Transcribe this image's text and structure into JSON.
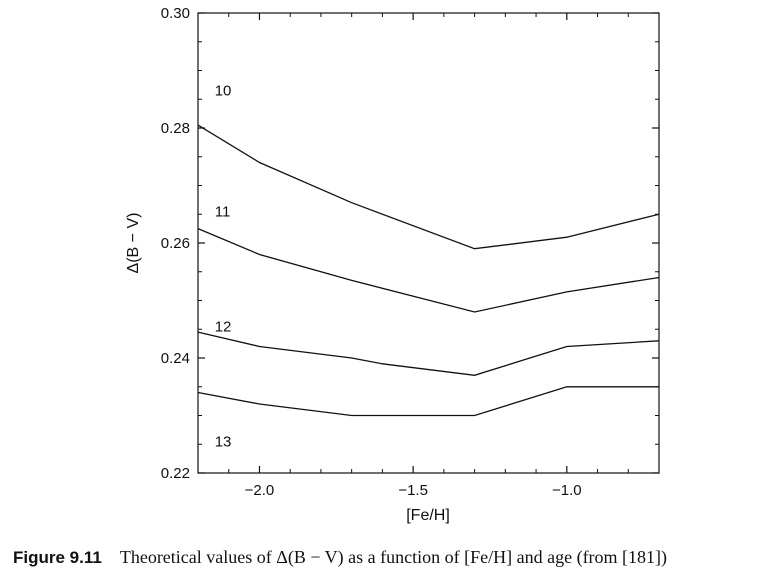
{
  "chart_data": {
    "type": "line",
    "xlabel": "[Fe/H]",
    "ylabel": "Δ(B − V)",
    "xlim": [
      -2.2,
      -0.7
    ],
    "ylim": [
      0.22,
      0.3
    ],
    "xticks": [
      -2.0,
      -1.5,
      -1.0
    ],
    "xtick_labels": [
      "−2.0",
      "−1.5",
      "−1.0"
    ],
    "yticks": [
      0.22,
      0.24,
      0.26,
      0.28,
      0.3
    ],
    "ytick_labels": [
      "0.22",
      "0.24",
      "0.26",
      "0.28",
      "0.30"
    ],
    "grid": false,
    "series": [
      {
        "name": "10",
        "x": [
          -2.2,
          -2.0,
          -1.7,
          -1.3,
          -1.0,
          -0.7
        ],
        "y": [
          0.2805,
          0.274,
          0.267,
          0.259,
          0.261,
          0.265
        ]
      },
      {
        "name": "11",
        "x": [
          -2.2,
          -2.0,
          -1.7,
          -1.3,
          -1.0,
          -0.7
        ],
        "y": [
          0.2625,
          0.258,
          0.2535,
          0.248,
          0.2515,
          0.254
        ]
      },
      {
        "name": "12",
        "x": [
          -2.2,
          -2.0,
          -1.7,
          -1.6,
          -1.3,
          -1.0,
          -0.7
        ],
        "y": [
          0.2445,
          0.242,
          0.24,
          0.239,
          0.237,
          0.242,
          0.243
        ]
      },
      {
        "name": "13",
        "x": [
          -2.2,
          -2.0,
          -1.7,
          -1.3,
          -1.0,
          -0.7
        ],
        "y": [
          0.234,
          0.232,
          0.23,
          0.23,
          0.235,
          0.235
        ]
      }
    ],
    "curve_labels": [
      {
        "text": "10",
        "x": -2.1,
        "y": 0.2865
      },
      {
        "text": "11",
        "x": -2.1,
        "y": 0.2655
      },
      {
        "text": "12",
        "x": -2.1,
        "y": 0.2455
      },
      {
        "text": "13",
        "x": -2.1,
        "y": 0.2255
      }
    ]
  },
  "caption": {
    "number": "Figure 9.11",
    "text": "Theoretical values of Δ(B − V) as a function of [Fe/H] and age (from [181])"
  }
}
